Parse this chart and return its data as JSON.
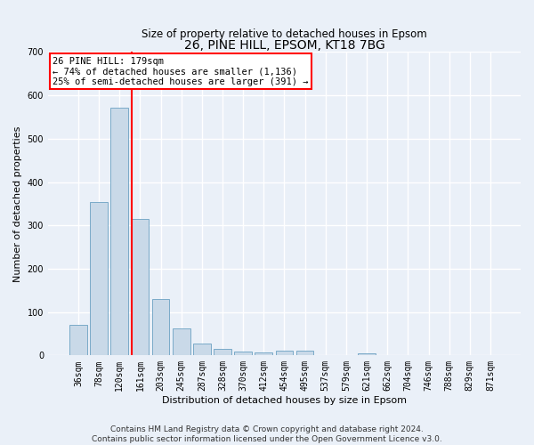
{
  "title": "26, PINE HILL, EPSOM, KT18 7BG",
  "subtitle": "Size of property relative to detached houses in Epsom",
  "xlabel": "Distribution of detached houses by size in Epsom",
  "ylabel": "Number of detached properties",
  "bar_labels": [
    "36sqm",
    "78sqm",
    "120sqm",
    "161sqm",
    "203sqm",
    "245sqm",
    "287sqm",
    "328sqm",
    "370sqm",
    "412sqm",
    "454sqm",
    "495sqm",
    "537sqm",
    "579sqm",
    "621sqm",
    "662sqm",
    "704sqm",
    "746sqm",
    "788sqm",
    "829sqm",
    "871sqm"
  ],
  "bar_values": [
    70,
    353,
    571,
    314,
    130,
    62,
    27,
    16,
    8,
    6,
    10,
    10,
    0,
    0,
    4,
    0,
    0,
    0,
    0,
    0,
    0
  ],
  "bar_color": "#c9d9e8",
  "bar_edgecolor": "#7aaac8",
  "annotation_text_lines": [
    "26 PINE HILL: 179sqm",
    "← 74% of detached houses are smaller (1,136)",
    "25% of semi-detached houses are larger (391) →"
  ],
  "annotation_box_color": "white",
  "annotation_box_edgecolor": "red",
  "vline_color": "red",
  "vline_bin_index": 3,
  "ylim": [
    0,
    700
  ],
  "yticks": [
    0,
    100,
    200,
    300,
    400,
    500,
    600,
    700
  ],
  "footer_text": "Contains HM Land Registry data © Crown copyright and database right 2024.\nContains public sector information licensed under the Open Government Licence v3.0.",
  "bg_color": "#eaf0f8",
  "grid_color": "#ffffff",
  "title_fontsize": 10,
  "axis_label_fontsize": 8,
  "tick_fontsize": 7,
  "footer_fontsize": 6.5,
  "annotation_fontsize": 7.5
}
